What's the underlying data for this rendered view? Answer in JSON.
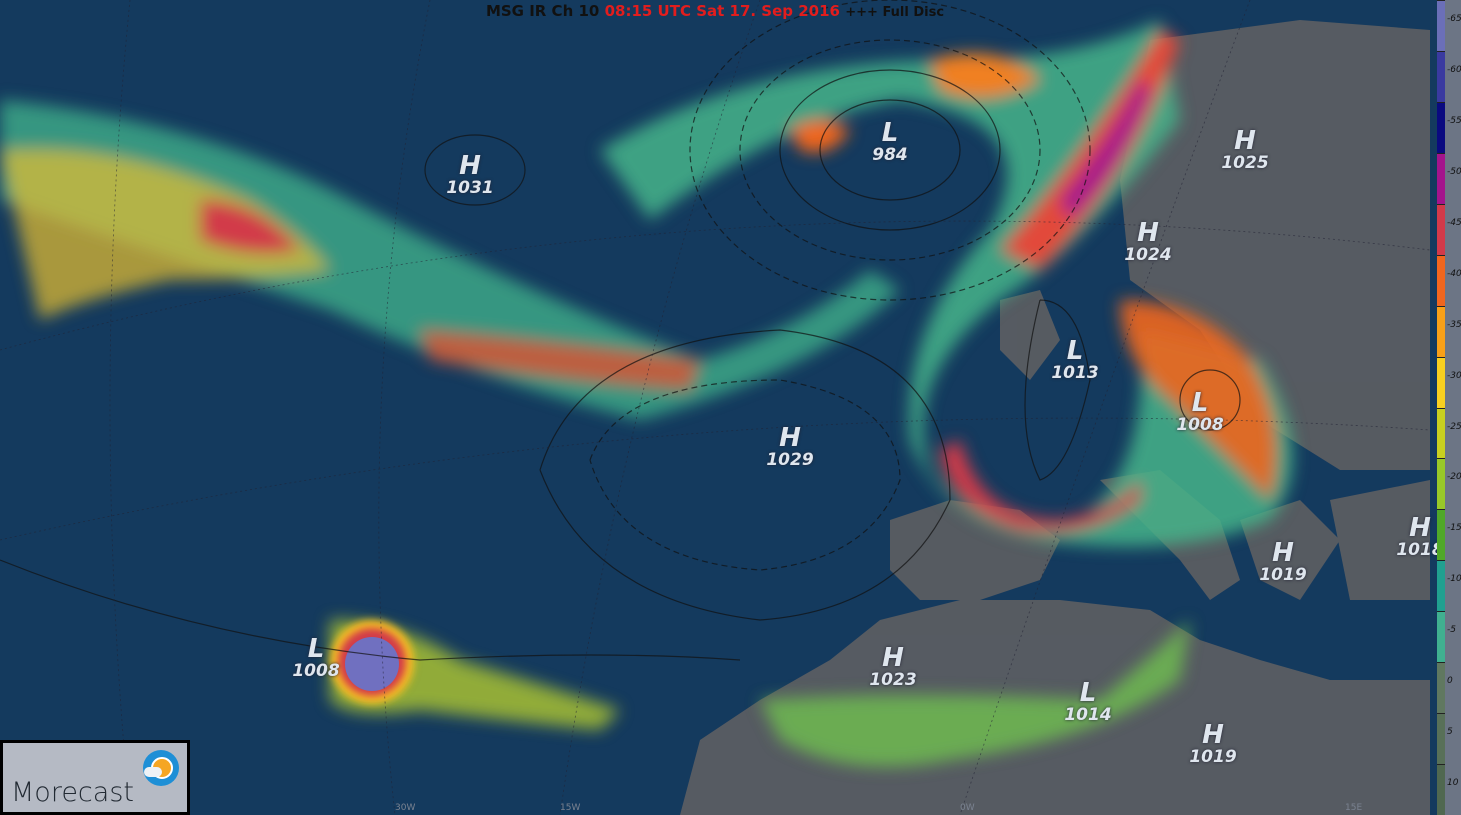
{
  "title": {
    "prefix": "MSG IR Ch 10",
    "time": "08:15 UTC Sat 17. Sep 2016",
    "suffix": "+++ Full Disc"
  },
  "pressure_centers": [
    {
      "type": "H",
      "value": "1031"
    },
    {
      "type": "L",
      "value": "984"
    },
    {
      "type": "H",
      "value": "1025"
    },
    {
      "type": "H",
      "value": "1024"
    },
    {
      "type": "L",
      "value": "1013"
    },
    {
      "type": "L",
      "value": "1008"
    },
    {
      "type": "H",
      "value": "1029"
    },
    {
      "type": "H",
      "value": "1018"
    },
    {
      "type": "H",
      "value": "1019"
    },
    {
      "type": "L",
      "value": "1008"
    },
    {
      "type": "H",
      "value": "1023"
    },
    {
      "type": "L",
      "value": "1014"
    },
    {
      "type": "H",
      "value": "1019"
    }
  ],
  "longitude_labels": [
    "30W",
    "15W",
    "0W",
    "15E"
  ],
  "colorbar": {
    "unit_note": "",
    "ticks": [
      "-65",
      "-60",
      "-55",
      "-50",
      "-45",
      "-40",
      "-35",
      "-30",
      "-25",
      "-20",
      "-15",
      "-10",
      "-5",
      "0",
      "5",
      "10"
    ],
    "colors": [
      "#6b6fb8",
      "#3a3aa0",
      "#0a0a80",
      "#a4148c",
      "#d23a4a",
      "#f0661e",
      "#f8a018",
      "#f8d020",
      "#c8d020",
      "#98c828",
      "#50a828",
      "#20a090",
      "#40b090",
      "#607860",
      "#587058",
      "#506850"
    ]
  },
  "logo": {
    "text": "Morecast"
  }
}
